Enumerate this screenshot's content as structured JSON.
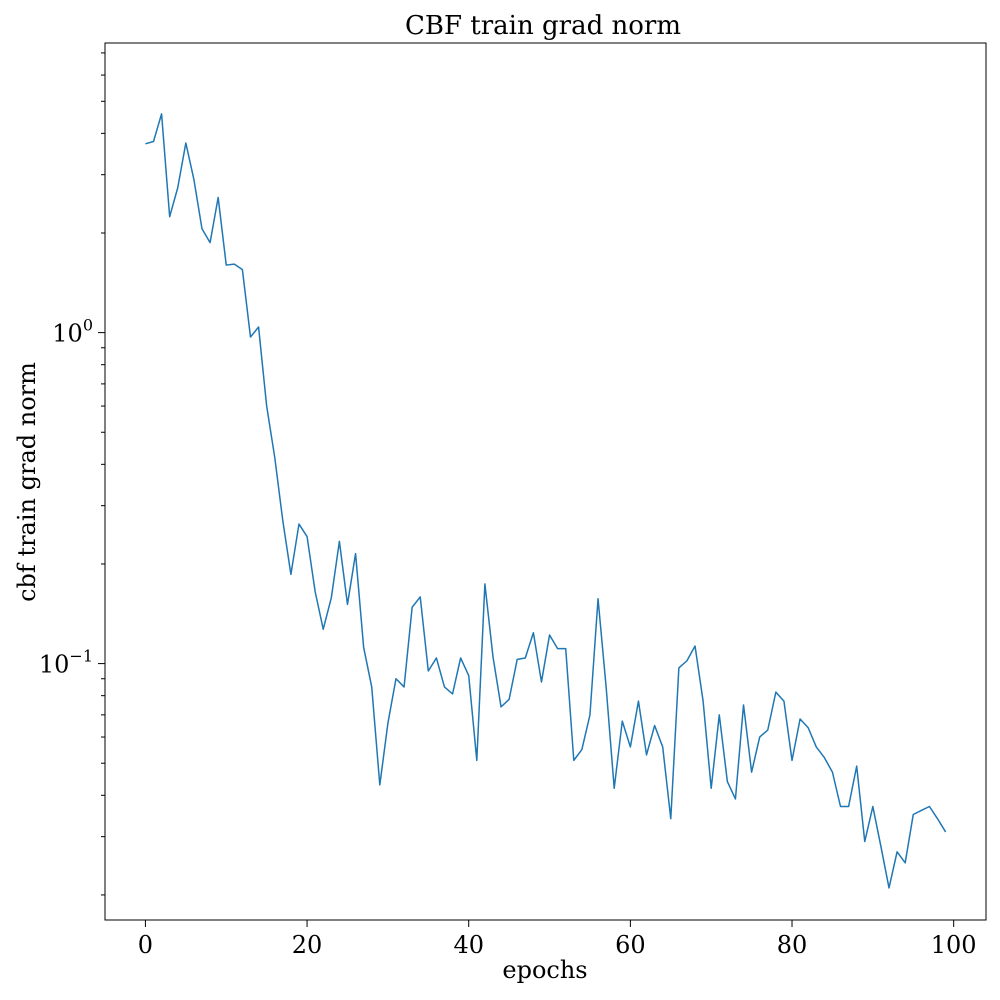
{
  "chart_data": {
    "type": "line",
    "title": "CBF train grad norm",
    "xlabel": "epochs",
    "ylabel": "cbf train grad norm",
    "yscale": "log",
    "xlim": [
      -5,
      104
    ],
    "ylim": [
      0.0168,
      7.5
    ],
    "grid": false,
    "legend": "none",
    "xticks": [
      {
        "value": 0,
        "label": "0"
      },
      {
        "value": 20,
        "label": "20"
      },
      {
        "value": 40,
        "label": "40"
      },
      {
        "value": 60,
        "label": "60"
      },
      {
        "value": 80,
        "label": "80"
      },
      {
        "value": 100,
        "label": "100"
      }
    ],
    "yticks": [
      {
        "value": 1,
        "base": "10",
        "exp": "0"
      },
      {
        "value": 0.1,
        "base": "10",
        "exp": "−1"
      }
    ],
    "series": [
      {
        "color": "#1f77b4",
        "x": [
          0,
          1,
          2,
          3,
          4,
          5,
          6,
          7,
          8,
          9,
          10,
          11,
          12,
          13,
          14,
          15,
          16,
          17,
          18,
          19,
          20,
          21,
          22,
          23,
          24,
          25,
          26,
          27,
          28,
          29,
          30,
          31,
          32,
          33,
          34,
          35,
          36,
          37,
          38,
          39,
          40,
          41,
          42,
          43,
          44,
          45,
          46,
          47,
          48,
          49,
          50,
          51,
          52,
          53,
          54,
          55,
          56,
          57,
          58,
          59,
          60,
          61,
          62,
          63,
          64,
          65,
          66,
          67,
          68,
          69,
          70,
          71,
          72,
          73,
          74,
          75,
          76,
          77,
          78,
          79,
          80,
          81,
          82,
          83,
          84,
          85,
          86,
          87,
          88,
          89,
          90,
          91,
          92,
          93,
          94,
          95,
          96,
          97,
          98,
          99
        ],
        "values": [
          3.72,
          3.78,
          4.58,
          2.24,
          2.74,
          3.74,
          2.9,
          2.06,
          1.87,
          2.56,
          1.6,
          1.61,
          1.55,
          0.97,
          1.04,
          0.6,
          0.42,
          0.27,
          0.186,
          0.264,
          0.242,
          0.165,
          0.127,
          0.158,
          0.234,
          0.151,
          0.215,
          0.112,
          0.085,
          0.043,
          0.066,
          0.09,
          0.085,
          0.148,
          0.159,
          0.095,
          0.104,
          0.085,
          0.081,
          0.104,
          0.092,
          0.051,
          0.174,
          0.105,
          0.074,
          0.078,
          0.103,
          0.104,
          0.124,
          0.088,
          0.122,
          0.111,
          0.111,
          0.051,
          0.055,
          0.07,
          0.157,
          0.085,
          0.042,
          0.067,
          0.056,
          0.077,
          0.053,
          0.065,
          0.056,
          0.034,
          0.097,
          0.102,
          0.113,
          0.077,
          0.042,
          0.07,
          0.044,
          0.039,
          0.075,
          0.047,
          0.06,
          0.063,
          0.082,
          0.077,
          0.051,
          0.068,
          0.064,
          0.056,
          0.052,
          0.047,
          0.037,
          0.037,
          0.049,
          0.029,
          0.037,
          0.028,
          0.021,
          0.027,
          0.025,
          0.035,
          0.036,
          0.037,
          0.034,
          0.031
        ]
      }
    ]
  }
}
